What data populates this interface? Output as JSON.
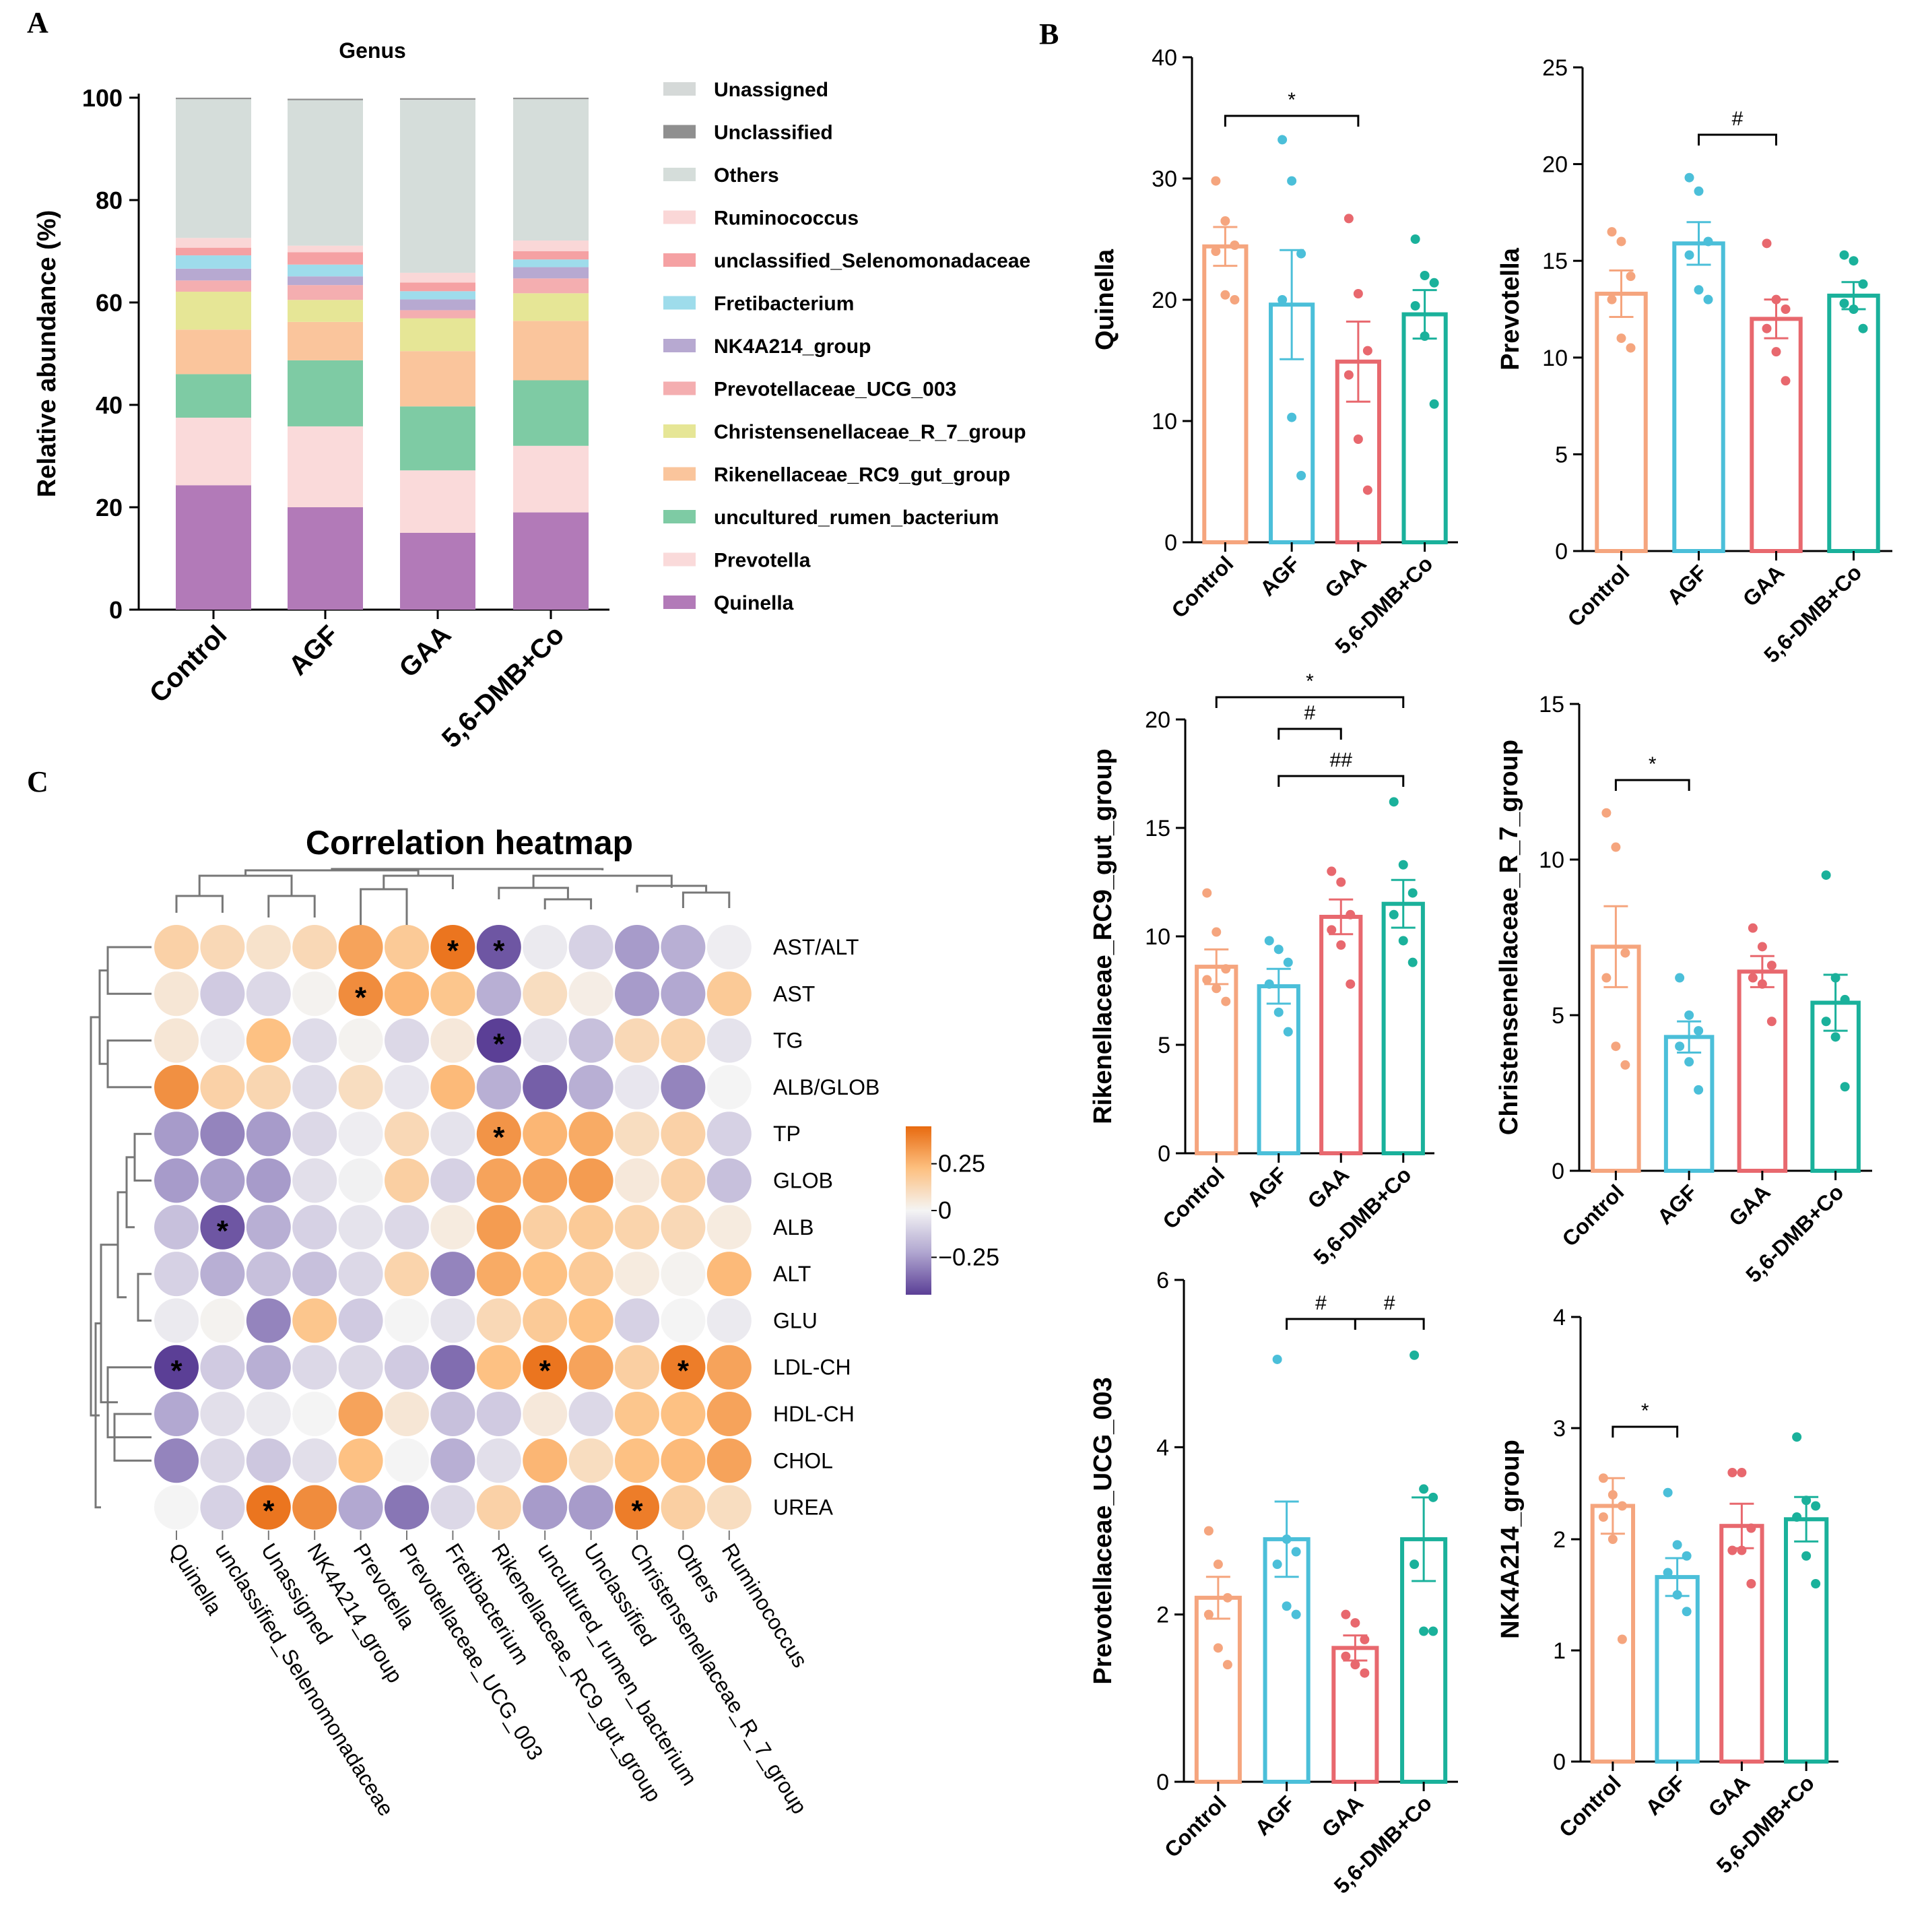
{
  "panel_letters": [
    "A",
    "B",
    "C"
  ],
  "colors": {
    "Control": "#F5A57E",
    "AGF": "#4BBFD9",
    "GAA": "#E8686E",
    "5,6-DMB+Co": "#1AB19B",
    "axis": "#000000",
    "dendro": "#777777",
    "heat_low": "#5B3F96",
    "heat_mid": "#F4F4F4",
    "heat_high": "#E86A10"
  },
  "chart_data": [
    {
      "id": "A",
      "type": "bar",
      "stacked": true,
      "title": "Genus",
      "xlabel": "",
      "ylabel": "Relative abundance (%)",
      "ylim": [
        0,
        100
      ],
      "yticks": [
        0,
        20,
        40,
        60,
        80,
        100
      ],
      "categories": [
        "Control",
        "AGF",
        "GAA",
        "5,6-DMB+Co"
      ],
      "legend_position": "right",
      "series": [
        {
          "name": "Quinella",
          "color": "#B27AB8",
          "values": [
            24.3,
            20.0,
            15.0,
            19.0
          ]
        },
        {
          "name": "Prevotella",
          "color": "#FADADA",
          "values": [
            13.2,
            15.8,
            12.2,
            13.0
          ]
        },
        {
          "name": "uncultured_rumen_bacterium",
          "color": "#7ECBA4",
          "values": [
            8.5,
            12.9,
            12.5,
            12.8
          ]
        },
        {
          "name": "Rikenellaceae_RC9_gut_group",
          "color": "#FAC59C",
          "values": [
            8.7,
            7.5,
            10.8,
            11.6
          ]
        },
        {
          "name": "Christensenellaceae_R_7_group",
          "color": "#E6E696",
          "values": [
            7.4,
            4.3,
            6.4,
            5.4
          ]
        },
        {
          "name": "Prevotellaceae_UCG_003",
          "color": "#F4AEB0",
          "values": [
            2.2,
            2.9,
            1.6,
            2.9
          ]
        },
        {
          "name": "NK4A214_group",
          "color": "#B7A9D1",
          "values": [
            2.3,
            1.7,
            2.1,
            2.2
          ]
        },
        {
          "name": "Fretibacterium",
          "color": "#9EDCEB",
          "values": [
            2.6,
            2.3,
            1.6,
            1.5
          ]
        },
        {
          "name": "unclassified_Selenomonadaceae",
          "color": "#F5A1A3",
          "values": [
            1.5,
            2.4,
            1.7,
            1.6
          ]
        },
        {
          "name": "Ruminococcus",
          "color": "#FAD7D7",
          "values": [
            1.9,
            1.3,
            1.9,
            2.1
          ]
        },
        {
          "name": "Others",
          "color": "#D5DDDA",
          "values": [
            27.1,
            28.4,
            33.8,
            27.6
          ]
        },
        {
          "name": "Unclassified",
          "color": "#8F8F8F",
          "values": [
            0.3,
            0.3,
            0.3,
            0.3
          ]
        },
        {
          "name": "Unassigned",
          "color": "#D5D9D8",
          "values": [
            0.0,
            0.0,
            0.0,
            0.0
          ]
        }
      ]
    },
    {
      "id": "B1",
      "type": "bar",
      "ylabel": "Quinella",
      "ylim": [
        0,
        40
      ],
      "yticks": [
        0,
        10,
        20,
        30,
        40
      ],
      "categories": [
        "Control",
        "AGF",
        "GAA",
        "5,6-DMB+Co"
      ],
      "means": [
        24.4,
        19.6,
        14.9,
        18.8
      ],
      "sem": [
        1.6,
        4.5,
        3.3,
        2.0
      ],
      "points": [
        [
          29.8,
          26.5,
          24.5,
          24.0,
          20.4,
          20.0
        ],
        [
          33.2,
          29.8,
          23.8,
          20.0,
          10.3,
          5.5
        ],
        [
          26.7,
          20.5,
          15.8,
          13.8,
          8.5,
          4.3
        ],
        [
          25.0,
          22.0,
          21.4,
          19.5,
          17.0,
          11.4
        ]
      ],
      "brackets": [
        {
          "from": 0,
          "to": 2,
          "label": "*"
        }
      ]
    },
    {
      "id": "B2",
      "type": "bar",
      "ylabel": "Prevotella",
      "ylim": [
        0,
        25
      ],
      "yticks": [
        0,
        5,
        10,
        15,
        20,
        25
      ],
      "categories": [
        "Control",
        "AGF",
        "GAA",
        "5,6-DMB+Co"
      ],
      "means": [
        13.3,
        15.9,
        12.0,
        13.2
      ],
      "sem": [
        1.2,
        1.1,
        1.0,
        0.7
      ],
      "points": [
        [
          16.5,
          16.0,
          14.2,
          13.0,
          11.0,
          10.5
        ],
        [
          19.3,
          18.6,
          16.0,
          15.3,
          13.5,
          13.0
        ],
        [
          15.9,
          13.0,
          12.5,
          11.5,
          10.3,
          8.8
        ],
        [
          15.3,
          15.0,
          13.8,
          12.8,
          12.5,
          11.5
        ]
      ],
      "brackets": [
        {
          "from": 1,
          "to": 2,
          "label": "#"
        }
      ]
    },
    {
      "id": "B3",
      "type": "bar",
      "ylabel": "Rikenellaceae_RC9_gut_group",
      "ylim": [
        0,
        20
      ],
      "yticks": [
        0,
        5,
        10,
        15,
        20
      ],
      "categories": [
        "Control",
        "AGF",
        "GAA",
        "5,6-DMB+Co"
      ],
      "means": [
        8.6,
        7.7,
        10.9,
        11.5
      ],
      "sem": [
        0.8,
        0.8,
        0.8,
        1.1
      ],
      "points": [
        [
          12.0,
          10.2,
          8.5,
          8.0,
          7.6,
          7.0
        ],
        [
          9.8,
          9.4,
          8.8,
          7.8,
          6.5,
          5.6
        ],
        [
          13.0,
          12.5,
          11.0,
          10.3,
          9.6,
          7.8
        ],
        [
          16.2,
          13.3,
          12.0,
          11.0,
          9.8,
          8.8
        ]
      ],
      "brackets": [
        {
          "from": 0,
          "to": 3,
          "label": "*"
        },
        {
          "from": 1,
          "to": 2,
          "label": "#"
        },
        {
          "from": 1,
          "to": 3,
          "label": "##"
        }
      ]
    },
    {
      "id": "B4",
      "type": "bar",
      "ylabel": "Christensenellaceae_R_7_group",
      "ylim": [
        0,
        15
      ],
      "yticks": [
        0,
        5,
        10,
        15
      ],
      "categories": [
        "Control",
        "AGF",
        "GAA",
        "5,6-DMB+Co"
      ],
      "means": [
        7.2,
        4.3,
        6.4,
        5.4
      ],
      "sem": [
        1.3,
        0.5,
        0.5,
        0.9
      ],
      "points": [
        [
          11.5,
          10.4,
          7.0,
          6.2,
          4.0,
          3.4
        ],
        [
          6.2,
          5.0,
          4.5,
          4.0,
          3.5,
          2.6
        ],
        [
          7.8,
          7.2,
          6.6,
          6.2,
          6.0,
          4.8
        ],
        [
          9.5,
          6.2,
          5.5,
          4.8,
          4.3,
          2.7
        ]
      ],
      "brackets": [
        {
          "from": 0,
          "to": 1,
          "label": "*"
        }
      ]
    },
    {
      "id": "B5",
      "type": "bar",
      "ylabel": "Prevotellaceae_UCG_003",
      "ylim": [
        0,
        6
      ],
      "yticks": [
        0,
        2,
        4,
        6
      ],
      "categories": [
        "Control",
        "AGF",
        "GAA",
        "5,6-DMB+Co"
      ],
      "means": [
        2.2,
        2.9,
        1.6,
        2.9
      ],
      "sem": [
        0.25,
        0.45,
        0.15,
        0.5
      ],
      "points": [
        [
          3.0,
          2.6,
          2.2,
          2.0,
          1.6,
          1.4
        ],
        [
          5.05,
          2.9,
          2.75,
          2.6,
          2.1,
          2.0
        ],
        [
          2.0,
          1.9,
          1.7,
          1.5,
          1.4,
          1.3
        ],
        [
          5.1,
          3.5,
          3.4,
          2.6,
          1.8,
          1.8
        ]
      ],
      "brackets": [
        {
          "from": 1,
          "to": 2,
          "label": "#"
        },
        {
          "from": 2,
          "to": 3,
          "label": "#"
        }
      ]
    },
    {
      "id": "B6",
      "type": "bar",
      "ylabel": "NK4A214_group",
      "ylim": [
        0,
        4
      ],
      "yticks": [
        0,
        1,
        2,
        3,
        4
      ],
      "categories": [
        "Control",
        "AGF",
        "GAA",
        "5,6-DMB+Co"
      ],
      "means": [
        2.3,
        1.66,
        2.12,
        2.18
      ],
      "sem": [
        0.25,
        0.17,
        0.2,
        0.2
      ],
      "points": [
        [
          2.55,
          2.4,
          2.3,
          2.2,
          2.0,
          1.1
        ],
        [
          2.42,
          1.95,
          1.85,
          1.7,
          1.5,
          1.35
        ],
        [
          2.6,
          2.6,
          2.1,
          1.9,
          1.9,
          1.6
        ],
        [
          2.92,
          2.35,
          2.3,
          2.2,
          1.85,
          1.6
        ]
      ],
      "brackets": [
        {
          "from": 0,
          "to": 1,
          "label": "*"
        }
      ]
    },
    {
      "id": "C",
      "type": "heatmap",
      "title": "Correlation heatmap",
      "rows": [
        "AST/ALT",
        "AST",
        "TG",
        "ALB/GLOB",
        "TP",
        "GLOB",
        "ALB",
        "ALT",
        "GLU",
        "LDL-CH",
        "HDL-CH",
        "CHOL",
        "UREA"
      ],
      "columns": [
        "Quinella",
        "unclassified_Selenomonadaceae",
        "Unassigned",
        "NK4A214_group",
        "Prevotella",
        "Prevotellaceae_UCG_003",
        "Fretibacterium",
        "Rikenellaceae_RC9_gut_group",
        "uncultured_rumen_bacterium",
        "Unclassified",
        "Christensenellaceae_R_7_group",
        "Others",
        "Ruminococcus"
      ],
      "colorbar": {
        "ticks": [
          0.25,
          0,
          -0.25
        ],
        "range": [
          -0.45,
          0.45
        ]
      },
      "values": [
        [
          0.15,
          0.12,
          0.08,
          0.12,
          0.3,
          0.18,
          0.42,
          -0.4,
          -0.03,
          -0.1,
          -0.25,
          -0.2,
          -0.02
        ],
        [
          0.06,
          -0.12,
          -0.08,
          0.01,
          0.36,
          0.25,
          0.2,
          -0.2,
          0.1,
          0.03,
          -0.25,
          -0.22,
          0.18
        ],
        [
          0.06,
          -0.02,
          0.22,
          -0.07,
          0.01,
          -0.08,
          0.05,
          -0.45,
          -0.05,
          -0.15,
          0.12,
          0.14,
          -0.05
        ],
        [
          0.35,
          0.15,
          0.13,
          -0.07,
          0.1,
          -0.04,
          0.24,
          -0.2,
          -0.38,
          -0.2,
          -0.04,
          -0.3,
          0.0
        ],
        [
          -0.25,
          -0.3,
          -0.25,
          -0.08,
          -0.02,
          0.12,
          -0.05,
          0.34,
          0.25,
          0.28,
          0.1,
          0.15,
          -0.1
        ],
        [
          -0.25,
          -0.24,
          -0.25,
          -0.06,
          -0.01,
          0.16,
          -0.1,
          0.3,
          0.3,
          0.32,
          0.05,
          0.15,
          -0.15
        ],
        [
          -0.15,
          -0.4,
          -0.2,
          -0.1,
          -0.05,
          -0.08,
          0.04,
          0.32,
          0.16,
          0.18,
          0.14,
          0.12,
          0.04
        ],
        [
          -0.1,
          -0.2,
          -0.15,
          -0.15,
          -0.08,
          0.14,
          -0.3,
          0.28,
          0.22,
          0.18,
          0.04,
          0.01,
          0.24
        ],
        [
          -0.03,
          0.01,
          -0.3,
          0.2,
          -0.12,
          0.0,
          -0.05,
          0.12,
          0.18,
          0.22,
          -0.1,
          0.0,
          -0.03
        ],
        [
          -0.45,
          -0.12,
          -0.2,
          -0.08,
          -0.08,
          -0.12,
          -0.35,
          0.22,
          0.42,
          0.3,
          0.16,
          0.4,
          0.3
        ],
        [
          -0.22,
          -0.06,
          -0.03,
          0.0,
          0.3,
          0.06,
          -0.15,
          -0.12,
          0.05,
          -0.08,
          0.2,
          0.22,
          0.3
        ],
        [
          -0.3,
          -0.08,
          -0.13,
          -0.06,
          0.22,
          0.0,
          -0.2,
          -0.06,
          0.25,
          0.1,
          0.22,
          0.24,
          0.3
        ],
        [
          0.0,
          -0.1,
          0.42,
          0.36,
          -0.22,
          -0.33,
          -0.08,
          0.15,
          -0.25,
          -0.25,
          0.4,
          0.16,
          0.1
        ]
      ],
      "stars": [
        [
          0,
          6
        ],
        [
          0,
          7
        ],
        [
          1,
          4
        ],
        [
          2,
          7
        ],
        [
          4,
          7
        ],
        [
          6,
          1
        ],
        [
          9,
          0
        ],
        [
          9,
          8
        ],
        [
          9,
          11
        ],
        [
          12,
          2
        ],
        [
          12,
          10
        ]
      ],
      "star_label": "*"
    }
  ]
}
